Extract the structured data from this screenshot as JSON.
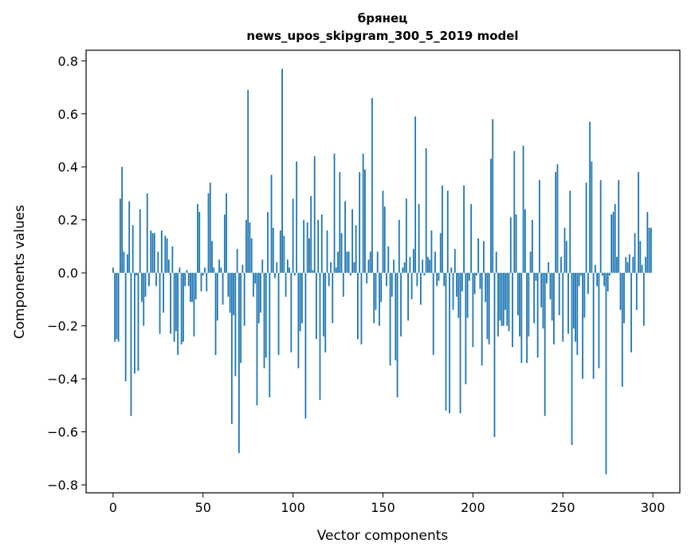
{
  "chart_data": {
    "type": "bar",
    "title": "брянец",
    "subtitle": "news_upos_skipgram_300_5_2019 model",
    "xlabel": "Vector components",
    "ylabel": "Components values",
    "xlim": [
      -15,
      315
    ],
    "ylim": [
      -0.83,
      0.84
    ],
    "xticks": [
      0,
      50,
      100,
      150,
      200,
      250,
      300
    ],
    "yticks": [
      -0.8,
      -0.6,
      -0.4,
      -0.2,
      0.0,
      0.2,
      0.4,
      0.6,
      0.8
    ],
    "ytick_labels": [
      "−0.8",
      "−0.6",
      "−0.4",
      "−0.2",
      "0.0",
      "0.2",
      "0.4",
      "0.6",
      "0.8"
    ],
    "bar_color": "#1f77b4",
    "grid": false,
    "values": [
      0.02,
      -0.26,
      -0.25,
      -0.26,
      0.28,
      0.4,
      0.08,
      -0.41,
      0.07,
      0.27,
      -0.54,
      0.18,
      -0.38,
      -0.01,
      -0.37,
      0.24,
      -0.11,
      -0.2,
      -0.09,
      0.3,
      -0.05,
      0.16,
      0.15,
      0.15,
      -0.05,
      0.08,
      -0.23,
      0.16,
      -0.15,
      0.14,
      0.13,
      0.05,
      -0.23,
      0.1,
      -0.26,
      -0.22,
      -0.31,
      0.02,
      -0.27,
      -0.26,
      -0.05,
      0.01,
      -0.05,
      -0.11,
      -0.11,
      -0.24,
      -0.1,
      0.26,
      0.23,
      -0.07,
      -0.01,
      0.02,
      -0.07,
      0.3,
      0.34,
      0.12,
      0.02,
      -0.31,
      -0.18,
      0.05,
      0.02,
      -0.12,
      0.22,
      0.3,
      -0.09,
      -0.15,
      -0.57,
      -0.16,
      -0.39,
      0.09,
      -0.68,
      -0.34,
      0.03,
      -0.2,
      0.2,
      0.69,
      0.19,
      0.13,
      -0.09,
      -0.04,
      -0.5,
      -0.19,
      -0.15,
      0.05,
      -0.36,
      -0.32,
      0.23,
      -0.47,
      0.37,
      0.17,
      -0.02,
      0.04,
      -0.31,
      0.16,
      0.77,
      0.14,
      -0.09,
      0.05,
      0.02,
      -0.3,
      0.28,
      -0.01,
      0.42,
      -0.36,
      -0.22,
      -0.19,
      0.2,
      -0.55,
      0.19,
      0.13,
      0.29,
      0.01,
      0.44,
      -0.25,
      0.2,
      -0.48,
      0.22,
      -0.24,
      -0.3,
      0.16,
      -0.05,
      0.04,
      -0.19,
      0.45,
      0.02,
      0.08,
      0.38,
      0.15,
      -0.09,
      0.27,
      0.08,
      0.08,
      -0.01,
      0.24,
      0.04,
      0.18,
      -0.25,
      0.38,
      -0.27,
      0.45,
      0.39,
      -0.04,
      0.05,
      0.08,
      0.66,
      -0.19,
      -0.14,
      0.08,
      -0.2,
      -0.11,
      0.31,
      0.25,
      -0.05,
      0.1,
      -0.35,
      -0.09,
      0.05,
      -0.33,
      -0.47,
      0.2,
      -0.24,
      0.02,
      0.04,
      0.28,
      -0.18,
      0.06,
      -0.1,
      0.09,
      0.59,
      -0.05,
      0.26,
      -0.12,
      0.05,
      -0.01,
      0.47,
      0.06,
      0.05,
      0.16,
      -0.31,
      0.08,
      -0.05,
      -0.03,
      0.15,
      0.33,
      -0.05,
      -0.52,
      0.31,
      -0.53,
      0.02,
      -0.14,
      0.09,
      -0.09,
      -0.17,
      -0.53,
      -0.07,
      0.33,
      -0.42,
      -0.17,
      -0.03,
      0.26,
      -0.28,
      -0.08,
      -0.01,
      0.13,
      -0.06,
      -0.35,
      0.12,
      -0.11,
      -0.25,
      -0.27,
      0.43,
      0.58,
      -0.62,
      0.08,
      -0.24,
      -0.18,
      -0.2,
      -0.2,
      -0.14,
      -0.2,
      -0.22,
      0.21,
      -0.28,
      0.46,
      0.22,
      -0.16,
      -0.24,
      -0.34,
      0.48,
      0.24,
      -0.34,
      -0.24,
      0.08,
      0.2,
      -0.19,
      -0.03,
      -0.32,
      0.35,
      -0.13,
      -0.21,
      -0.54,
      -0.04,
      0.04,
      -0.1,
      -0.18,
      -0.27,
      0.38,
      0.41,
      -0.16,
      0.06,
      -0.26,
      0.17,
      0.12,
      -0.23,
      0.31,
      -0.65,
      -0.21,
      -0.26,
      -0.31,
      -0.05,
      -0.01,
      -0.4,
      -0.17,
      0.34,
      -0.08,
      0.57,
      0.42,
      -0.4,
      0.03,
      -0.05,
      -0.36,
      0.35,
      -0.01,
      -0.05,
      -0.76,
      -0.07,
      -0.01,
      0.22,
      0.23,
      0.26,
      0.06,
      0.35,
      -0.14,
      -0.43,
      -0.19,
      0.06,
      0.04,
      0.07,
      -0.3,
      0.06,
      0.15,
      -0.14,
      0.38,
      0.12,
      0.03,
      -0.2,
      0.06,
      0.23,
      0.17,
      0.17
    ]
  }
}
